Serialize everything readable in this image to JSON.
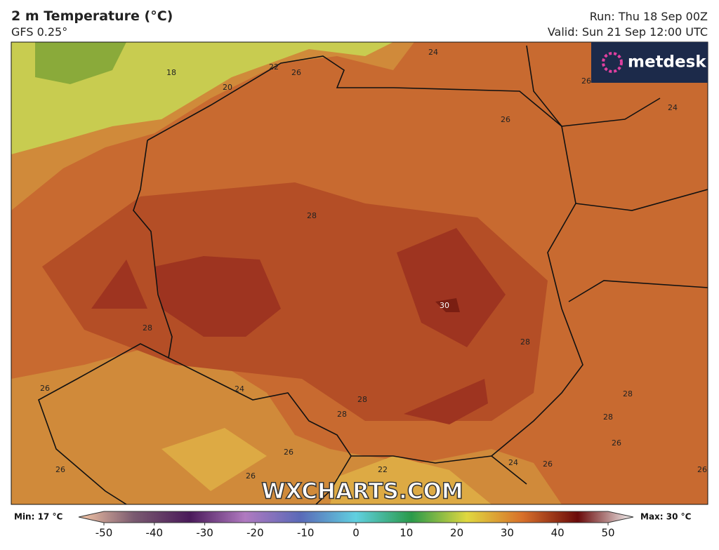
{
  "header": {
    "title": "2 m Temperature (°C)",
    "model": "GFS 0.25°",
    "run": "Run: Thu 18 Sep 00Z",
    "valid": "Valid: Sun 21 Sep 12:00 UTC"
  },
  "logo": "metdesk",
  "watermark": "WXCHARTS.COM",
  "contour_labels": [
    "18",
    "22",
    "26",
    "20",
    "24",
    "26",
    "24",
    "26",
    "28",
    "30",
    "28",
    "28",
    "26",
    "24",
    "28",
    "28",
    "28",
    "28",
    "26",
    "26",
    "24",
    "26",
    "26",
    "26",
    "26",
    "22"
  ],
  "colorbar": {
    "min_label": "Min: 17 °C",
    "max_label": "Max: 30 °C",
    "ticks": [
      -50,
      -40,
      -30,
      -20,
      -10,
      0,
      10,
      20,
      30,
      40,
      50
    ]
  }
}
